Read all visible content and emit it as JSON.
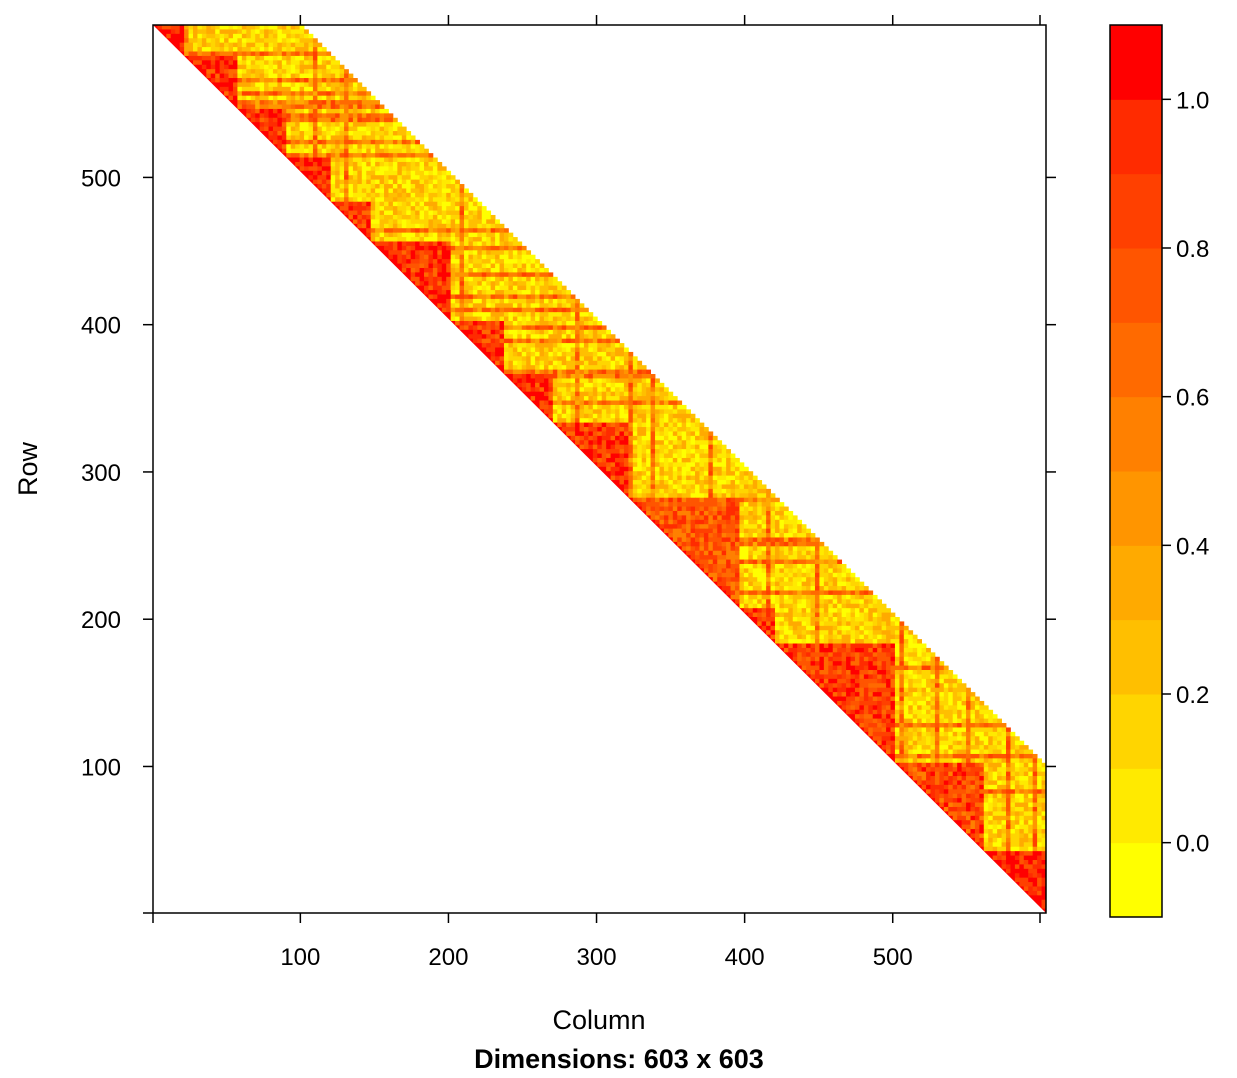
{
  "chart_data": {
    "type": "heatmap",
    "matrix": "upper-triangular",
    "nrow": 603,
    "ncol": 603,
    "xlabel": "Column",
    "ylabel": "Row",
    "subtitle": "Dimensions: 603 x 603",
    "x_ticks": [
      100,
      200,
      300,
      400,
      500
    ],
    "y_ticks": [
      100,
      200,
      300,
      400,
      500
    ],
    "xlim": [
      0.5,
      603.5
    ],
    "ylim": [
      603.5,
      0.5
    ],
    "colorbar": {
      "ticks": [
        0.0,
        0.2,
        0.4,
        0.6,
        0.8,
        1.0
      ],
      "tick_labels": [
        "0.0",
        "0.2",
        "0.4",
        "0.6",
        "0.8",
        "1.0"
      ],
      "range": [
        -0.1,
        1.1
      ],
      "bins": [
        {
          "from": -0.1,
          "to": 0.0,
          "color": "#FFFF00"
        },
        {
          "from": 0.0,
          "to": 0.1,
          "color": "#FFEA00"
        },
        {
          "from": 0.1,
          "to": 0.2,
          "color": "#FFD500"
        },
        {
          "from": 0.2,
          "to": 0.3,
          "color": "#FFBF00"
        },
        {
          "from": 0.3,
          "to": 0.4,
          "color": "#FFAA00"
        },
        {
          "from": 0.4,
          "to": 0.5,
          "color": "#FF9500"
        },
        {
          "from": 0.5,
          "to": 0.6,
          "color": "#FF8000"
        },
        {
          "from": 0.6,
          "to": 0.7,
          "color": "#FF6A00"
        },
        {
          "from": 0.7,
          "to": 0.8,
          "color": "#FF5500"
        },
        {
          "from": 0.8,
          "to": 0.9,
          "color": "#FF4000"
        },
        {
          "from": 0.9,
          "to": 1.0,
          "color": "#FF2B00"
        },
        {
          "from": 1.0,
          "to": 1.1,
          "color": "#FF0000"
        }
      ]
    },
    "blocks": [
      {
        "start": 1,
        "end": 20,
        "level": 0.95
      },
      {
        "start": 20,
        "end": 55,
        "level": 0.9
      },
      {
        "start": 55,
        "end": 90,
        "level": 0.9
      },
      {
        "start": 90,
        "end": 120,
        "level": 0.95
      },
      {
        "start": 120,
        "end": 145,
        "level": 0.85
      },
      {
        "start": 145,
        "end": 200,
        "level": 0.92
      },
      {
        "start": 200,
        "end": 235,
        "level": 0.85
      },
      {
        "start": 235,
        "end": 268,
        "level": 0.9
      },
      {
        "start": 268,
        "end": 320,
        "level": 0.88
      },
      {
        "start": 320,
        "end": 395,
        "level": 0.75
      },
      {
        "start": 395,
        "end": 420,
        "level": 0.85
      },
      {
        "start": 420,
        "end": 500,
        "level": 0.85
      },
      {
        "start": 500,
        "end": 560,
        "level": 0.8
      },
      {
        "start": 560,
        "end": 603,
        "level": 0.95
      }
    ],
    "band_width": 100,
    "off_block_level": 0.15
  }
}
